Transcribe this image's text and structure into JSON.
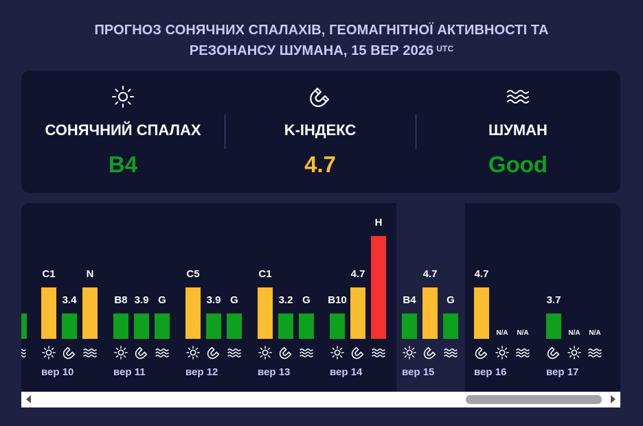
{
  "title": {
    "line1": "ПРОГНОЗ СОНЯЧНИХ СПАЛАХІВ, ГЕОМАГНІТНОЇ АКТИВНОСТІ ТА",
    "line2": "РЕЗОНАНСУ ШУМАНА, 15 ВЕР 2026",
    "sup": "UTC"
  },
  "colors": {
    "green": "#0ea01e",
    "yellow": "#fbbd2f",
    "red": "#f5322f",
    "label": "#c9caf6"
  },
  "summary": {
    "solar": {
      "icon": "sun-icon",
      "label": "СОНЯЧНИЙ СПАЛАХ",
      "value": "B4"
    },
    "kindex": {
      "icon": "magnet-icon",
      "label": "K-ІНДЕКС",
      "value": "4.7"
    },
    "schumann": {
      "icon": "waves-icon",
      "label": "ШУМАН",
      "value": "Good"
    }
  },
  "timeline": {
    "days": [
      {
        "label": "вер 10",
        "flare": "C1",
        "flare_level": "high",
        "kp": "3.4",
        "kp_level": "low",
        "schumann": "N",
        "schumann_level": "high"
      },
      {
        "label": "вер 11",
        "flare": "B8",
        "flare_level": "low",
        "kp": "3.9",
        "kp_level": "low",
        "schumann": "G",
        "schumann_level": "low"
      },
      {
        "label": "вер 12",
        "flare": "C5",
        "flare_level": "high",
        "kp": "3.9",
        "kp_level": "low",
        "schumann": "G",
        "schumann_level": "low"
      },
      {
        "label": "вер 13",
        "flare": "C1",
        "flare_level": "high",
        "kp": "3.2",
        "kp_level": "low",
        "schumann": "G",
        "schumann_level": "low"
      },
      {
        "label": "вер 14",
        "flare": "B10",
        "flare_level": "low",
        "kp": "4.7",
        "kp_level": "high",
        "schumann": "H",
        "schumann_level": "max"
      },
      {
        "label": "вер 15",
        "flare": "B4",
        "flare_level": "low",
        "kp": "4.7",
        "kp_level": "high",
        "schumann": "G",
        "schumann_level": "low"
      },
      {
        "label": "вер 16",
        "kp": "4.7",
        "kp_level": "high",
        "flare": "N/A",
        "schumann": "N/A"
      },
      {
        "label": "вер 17",
        "kp": "3.7",
        "kp_level": "low",
        "flare": "N/A",
        "schumann": "N/A"
      }
    ],
    "partial_left_value": "3"
  }
}
